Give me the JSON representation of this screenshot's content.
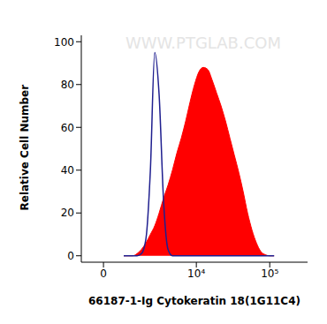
{
  "chart_data": {
    "type": "area",
    "x_label": "66187-1-Ig Cytokeratin 18(1G11C4)",
    "y_label": "Relative Cell Number",
    "annotations": [
      "WWW.PTGLAB.COM"
    ],
    "log": "x",
    "x": [
      530,
      700,
      890,
      1110,
      1360,
      1650,
      1980,
      2350,
      2780,
      3280,
      3840,
      4490,
      5230,
      6080,
      7050,
      8160,
      9430,
      10890,
      12560,
      14470,
      16660,
      19160,
      22030,
      25320,
      29080,
      33390,
      38320,
      43960,
      50420,
      57830,
      66330,
      76020,
      87120,
      99830,
      114450
    ],
    "series": [
      {
        "type": "line",
        "color": "#1f1f8f",
        "values": [
          0,
          0,
          0,
          0,
          1,
          8,
          40,
          95,
          75,
          25,
          3,
          0,
          0,
          0,
          0,
          0,
          0,
          0,
          0,
          0,
          0,
          0,
          0,
          0,
          0,
          0,
          0,
          0,
          0,
          0,
          0,
          0,
          0,
          0,
          0
        ]
      },
      {
        "type": "area",
        "color": "#ff0000",
        "values": [
          0,
          0,
          0,
          1,
          3,
          6,
          10,
          14,
          20,
          27,
          33,
          40,
          48,
          55,
          63,
          72,
          80,
          86,
          88,
          87,
          82,
          76,
          70,
          63,
          55,
          47,
          39,
          30,
          20,
          12,
          6,
          2,
          0.5,
          0,
          0
        ]
      }
    ],
    "xlim": [
      -600,
      320000
    ],
    "xticks": [
      0,
      {
        "value": 10000,
        "label": "10⁴"
      },
      {
        "value": 100000,
        "label": "10⁵"
      }
    ],
    "ylim": [
      -3,
      103
    ],
    "yticks": [
      0,
      20,
      40,
      60,
      80,
      100
    ]
  }
}
